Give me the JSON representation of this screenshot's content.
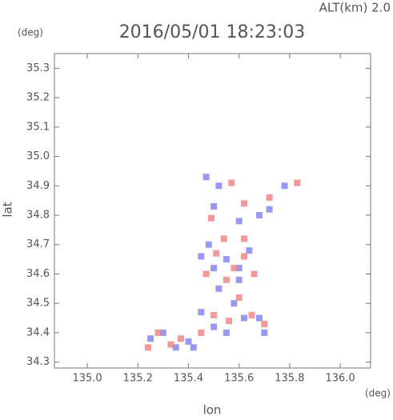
{
  "chart_data": {
    "type": "scatter",
    "title": "2016/05/01 18:23:03",
    "subtitle": "ALT(km) 2.0",
    "x_label": "lon",
    "y_label": "lat",
    "x_unit": "(deg)",
    "y_unit": "(deg)",
    "xlim": [
      134.87,
      136.12
    ],
    "ylim": [
      34.28,
      35.35
    ],
    "xticks": [
      {
        "value": 135.0,
        "label": "135.0"
      },
      135.2,
      135.4,
      135.6,
      135.8,
      {
        "value": 136.0,
        "label": "136.0"
      }
    ],
    "yticks": [
      34.3,
      34.4,
      34.5,
      34.6,
      34.7,
      34.8,
      34.9,
      {
        "value": 35.0,
        "label": "35.0"
      },
      35.1,
      35.2,
      35.3
    ],
    "grid": false,
    "series": [
      {
        "color": "#7f7ff0",
        "x": [
          135.47,
          135.52,
          135.5,
          135.6,
          135.68,
          135.78,
          135.45,
          135.5,
          135.55,
          135.6,
          135.52,
          135.58,
          135.62,
          135.68,
          135.7,
          135.45,
          135.5,
          135.4,
          135.3,
          135.35,
          135.25,
          135.42,
          135.55,
          135.64,
          135.48,
          135.72,
          135.6
        ],
        "y": [
          34.93,
          34.9,
          34.83,
          34.78,
          34.8,
          34.9,
          34.66,
          34.62,
          34.65,
          34.58,
          34.55,
          34.5,
          34.45,
          34.45,
          34.4,
          34.47,
          34.42,
          34.37,
          34.4,
          34.35,
          34.38,
          34.35,
          34.4,
          34.68,
          34.7,
          34.82,
          34.62
        ]
      },
      {
        "color": "#f07f7f",
        "x": [
          135.57,
          135.49,
          135.62,
          135.72,
          135.83,
          135.51,
          135.58,
          135.62,
          135.47,
          135.55,
          135.6,
          135.5,
          135.65,
          135.7,
          135.56,
          135.45,
          135.37,
          135.24,
          135.28,
          135.33,
          135.62,
          135.54,
          135.66
        ],
        "y": [
          34.91,
          34.79,
          34.84,
          34.86,
          34.91,
          34.67,
          34.62,
          34.66,
          34.6,
          34.58,
          34.52,
          34.46,
          34.46,
          34.43,
          34.44,
          34.4,
          34.38,
          34.35,
          34.4,
          34.36,
          34.72,
          34.72,
          34.6
        ]
      }
    ]
  }
}
